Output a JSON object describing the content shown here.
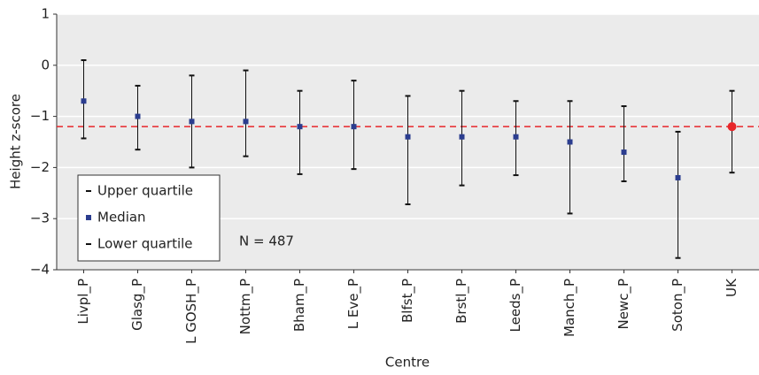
{
  "chart_data": {
    "type": "errorbar",
    "x_label": "Centre",
    "y_label": "Height z-score",
    "categories": [
      "Livpl_P",
      "Glasg_P",
      "L GOSH_P",
      "Nottm_P",
      "Bham_P",
      "L Eve_P",
      "Blfst_P",
      "Brstl_P",
      "Leeds_P",
      "Manch_P",
      "Newc_P",
      "Soton_P",
      "UK"
    ],
    "series": [
      {
        "name": "Upper quartile",
        "color": "#111111",
        "values": [
          0.1,
          -0.4,
          -0.2,
          -0.1,
          -0.5,
          -0.3,
          -0.6,
          -0.5,
          -0.7,
          -0.7,
          -0.8,
          -1.3,
          -0.5
        ]
      },
      {
        "name": "Median",
        "color": "#2b3d8f",
        "point_colors": [
          "#2b3d8f",
          "#2b3d8f",
          "#2b3d8f",
          "#2b3d8f",
          "#2b3d8f",
          "#2b3d8f",
          "#2b3d8f",
          "#2b3d8f",
          "#2b3d8f",
          "#2b3d8f",
          "#2b3d8f",
          "#2b3d8f",
          "#e8262a"
        ],
        "values": [
          -0.7,
          -1.0,
          -1.1,
          -1.1,
          -1.2,
          -1.2,
          -1.4,
          -1.4,
          -1.4,
          -1.5,
          -1.7,
          -2.2,
          -1.2
        ]
      },
      {
        "name": "Lower quartile",
        "color": "#111111",
        "values": [
          -1.43,
          -1.65,
          -2.0,
          -1.78,
          -2.13,
          -2.03,
          -2.72,
          -2.35,
          -2.15,
          -2.9,
          -2.27,
          -3.77,
          -2.1
        ]
      }
    ],
    "reference_line": {
      "value": -1.2,
      "color": "#e8262a"
    },
    "annotation": "N = 487",
    "ylim": [
      -4,
      1
    ],
    "yticks": [
      {
        "value": -4,
        "label": "−4"
      },
      {
        "value": -3,
        "label": "−3"
      },
      {
        "value": -2,
        "label": "−2"
      },
      {
        "value": -1,
        "label": "−1"
      },
      0,
      1
    ],
    "grid": true,
    "legend": "lower-left"
  }
}
